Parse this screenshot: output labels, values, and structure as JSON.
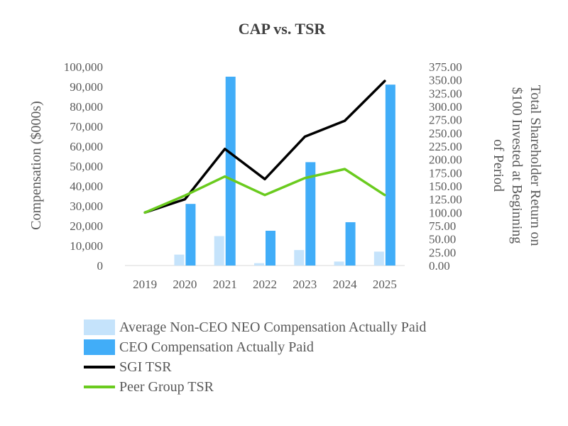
{
  "chart_data": {
    "type": "bar",
    "title": "CAP vs. TSR",
    "categories": [
      "2019",
      "2020",
      "2021",
      "2022",
      "2023",
      "2024",
      "2025"
    ],
    "ylabel": "Compensation ($000s)",
    "y2label_lines": [
      "Total Shareholder Return on",
      "$100 Invested at Beginning",
      "of Period"
    ],
    "ylim": [
      0,
      100000
    ],
    "y2lim": [
      0,
      375
    ],
    "y_ticks": [
      "0",
      "10,000",
      "20,000",
      "30,000",
      "40,000",
      "50,000",
      "60,000",
      "70,000",
      "80,000",
      "90,000",
      "100,000"
    ],
    "y2_ticks": [
      "0.00",
      "25.00",
      "50.00",
      "75.00",
      "100.00",
      "125.00",
      "150.00",
      "175.00",
      "200.00",
      "225.00",
      "250.00",
      "275.00",
      "300.00",
      "325.00",
      "350.00",
      "375.00"
    ],
    "series": [
      {
        "name": "Average Non-CEO NEO Compensation Actually Paid",
        "kind": "bar",
        "axis": "left",
        "color": "#c5e3fb",
        "values": [
          0,
          5500,
          14800,
          1200,
          7800,
          2000,
          7000
        ]
      },
      {
        "name": "CEO Compensation Actually Paid",
        "kind": "bar",
        "axis": "left",
        "color": "#41adf8",
        "values": [
          0,
          31000,
          95000,
          17500,
          52000,
          21800,
          91000
        ]
      },
      {
        "name": "SGI TSR",
        "kind": "line",
        "axis": "right",
        "color": "#000000",
        "values": [
          100,
          125,
          220,
          163,
          243,
          273,
          348
        ]
      },
      {
        "name": "Peer Group TSR",
        "kind": "line",
        "axis": "right",
        "color": "#6acb1e",
        "values": [
          100,
          132,
          168,
          133,
          165,
          182,
          133
        ]
      }
    ],
    "grid": false,
    "legend_position": "bottom"
  }
}
